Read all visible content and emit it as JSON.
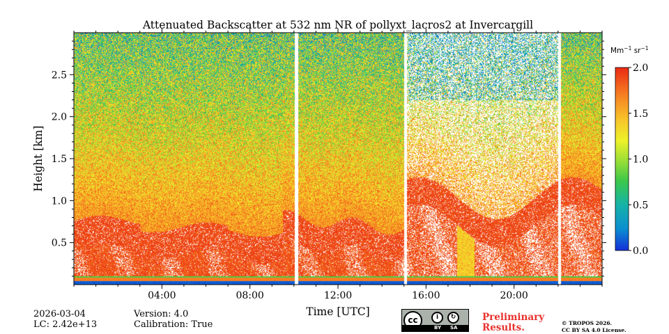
{
  "chart_data": {
    "type": "heatmap",
    "title": "Attenuated Backscatter at 532 nm NR of pollyxt_lacros2 at Invercargill",
    "xlabel": "Time [UTC]",
    "ylabel": "Height [km]",
    "xlim_hours": [
      0,
      24
    ],
    "ylim_km": [
      0,
      3.0
    ],
    "xticks": [
      {
        "value": 4,
        "label": "04:00"
      },
      {
        "value": 8,
        "label": "08:00"
      },
      {
        "value": 12,
        "label": "12:00"
      },
      {
        "value": 16,
        "label": "16:00"
      },
      {
        "value": 20,
        "label": "20:00"
      }
    ],
    "yticks": [
      {
        "value": 0.5,
        "label": "0.5"
      },
      {
        "value": 1.0,
        "label": "1.0"
      },
      {
        "value": 1.5,
        "label": "1.5"
      },
      {
        "value": 2.0,
        "label": "2.0"
      },
      {
        "value": 2.5,
        "label": "2.5"
      }
    ],
    "colorbar": {
      "unit_base": "Mm",
      "unit_exp1": "−1",
      "unit_mid": " sr",
      "unit_exp2": "−1",
      "min": 0.0,
      "max": 2.0,
      "ticks": [
        {
          "value": 0.0,
          "label": "0.0"
        },
        {
          "value": 0.5,
          "label": "0.5"
        },
        {
          "value": 1.0,
          "label": "1.0"
        },
        {
          "value": 1.5,
          "label": "1.5"
        },
        {
          "value": 2.0,
          "label": "2.0"
        }
      ]
    },
    "data_gaps_hours": [
      {
        "start": 10.03,
        "end": 10.18
      },
      {
        "start": 15.0,
        "end": 15.15
      },
      {
        "start": 22.0,
        "end": 22.12
      }
    ]
  },
  "footer": {
    "date": "2026-03-04",
    "lc": "LC: 2.42e+13",
    "version": "Version: 4.0",
    "calibration": "Calibration: True",
    "cc_text": "cc",
    "cc_by": "BY",
    "cc_sa": "SA",
    "preliminary_line1": "Preliminary",
    "preliminary_line2": "Results.",
    "copyright_line1": "© TROPOS 2026.",
    "copyright_line2": "CC BY SA 4.0 License."
  }
}
